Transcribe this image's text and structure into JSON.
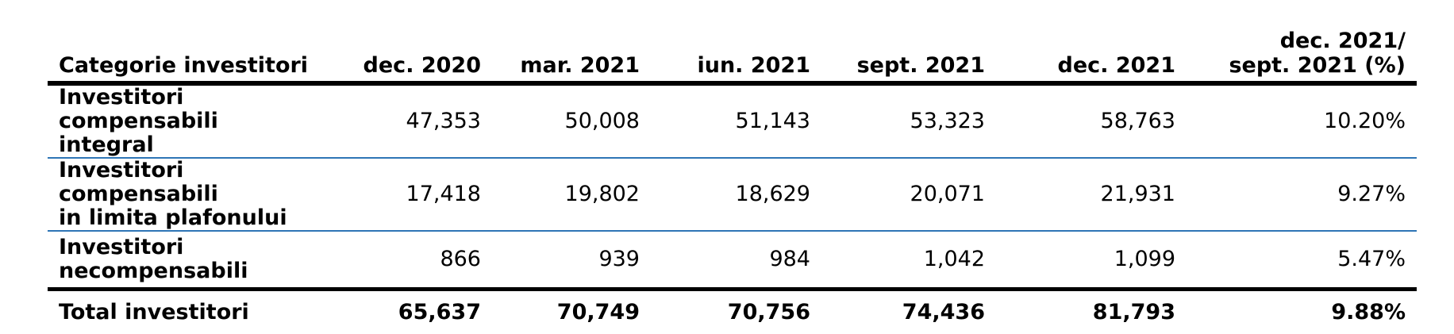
{
  "table": {
    "headers": {
      "category": "Categorie investitori",
      "dec2020": "dec. 2020",
      "mar2021": "mar. 2021",
      "iun2021": "iun. 2021",
      "sept2021": "sept. 2021",
      "dec2021": "dec. 2021",
      "change_line1": "dec. 2021/",
      "change_line2": "sept. 2021 (%)"
    },
    "rows": [
      {
        "category_line1": "Investitori compensabili",
        "category_line2": "integral",
        "dec2020": "47,353",
        "mar2021": "50,008",
        "iun2021": "51,143",
        "sept2021": "53,323",
        "dec2021": "58,763",
        "change": "10.20%"
      },
      {
        "category_line1": "Investitori compensabili",
        "category_line2": "in limita plafonului",
        "dec2020": "17,418",
        "mar2021": "19,802",
        "iun2021": "18,629",
        "sept2021": "20,071",
        "dec2021": "21,931",
        "change": "9.27%"
      },
      {
        "category_line1": "Investitori",
        "category_line2": "necompensabili",
        "dec2020": "866",
        "mar2021": "939",
        "iun2021": "984",
        "sept2021": "1,042",
        "dec2021": "1,099",
        "change": "5.47%"
      }
    ],
    "total": {
      "category": "Total investitori",
      "dec2020": "65,637",
      "mar2021": "70,749",
      "iun2021": "70,756",
      "sept2021": "74,436",
      "dec2021": "81,793",
      "change": "9.88%"
    },
    "colors": {
      "row_divider": "#2e75b6",
      "rule": "#000000"
    }
  }
}
